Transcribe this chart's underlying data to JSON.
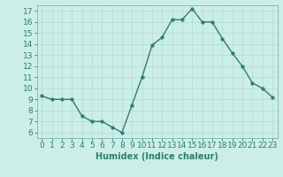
{
  "x": [
    0,
    1,
    2,
    3,
    4,
    5,
    6,
    7,
    8,
    9,
    10,
    11,
    12,
    13,
    14,
    15,
    16,
    17,
    18,
    19,
    20,
    21,
    22,
    23
  ],
  "y": [
    9.3,
    9.0,
    9.0,
    9.0,
    7.5,
    7.0,
    7.0,
    6.5,
    6.0,
    8.5,
    11.0,
    13.9,
    14.6,
    16.2,
    16.2,
    17.2,
    16.0,
    16.0,
    14.5,
    13.2,
    12.0,
    10.5,
    10.0,
    9.2
  ],
  "line_color": "#2e7d6e",
  "marker_color": "#2e7d6e",
  "bg_color": "#cceee8",
  "grid_color": "#b8ddd8",
  "xlabel": "Humidex (Indice chaleur)",
  "xlim": [
    -0.5,
    23.5
  ],
  "ylim": [
    5.5,
    17.5
  ],
  "yticks": [
    6,
    7,
    8,
    9,
    10,
    11,
    12,
    13,
    14,
    15,
    16,
    17
  ],
  "xtick_labels": [
    "0",
    "1",
    "2",
    "3",
    "4",
    "5",
    "6",
    "7",
    "8",
    "9",
    "10",
    "11",
    "12",
    "13",
    "14",
    "15",
    "16",
    "17",
    "18",
    "19",
    "20",
    "21",
    "22",
    "23"
  ],
  "xlabel_fontsize": 7,
  "tick_fontsize": 6.5,
  "line_width": 1.0,
  "marker_size": 2.5
}
